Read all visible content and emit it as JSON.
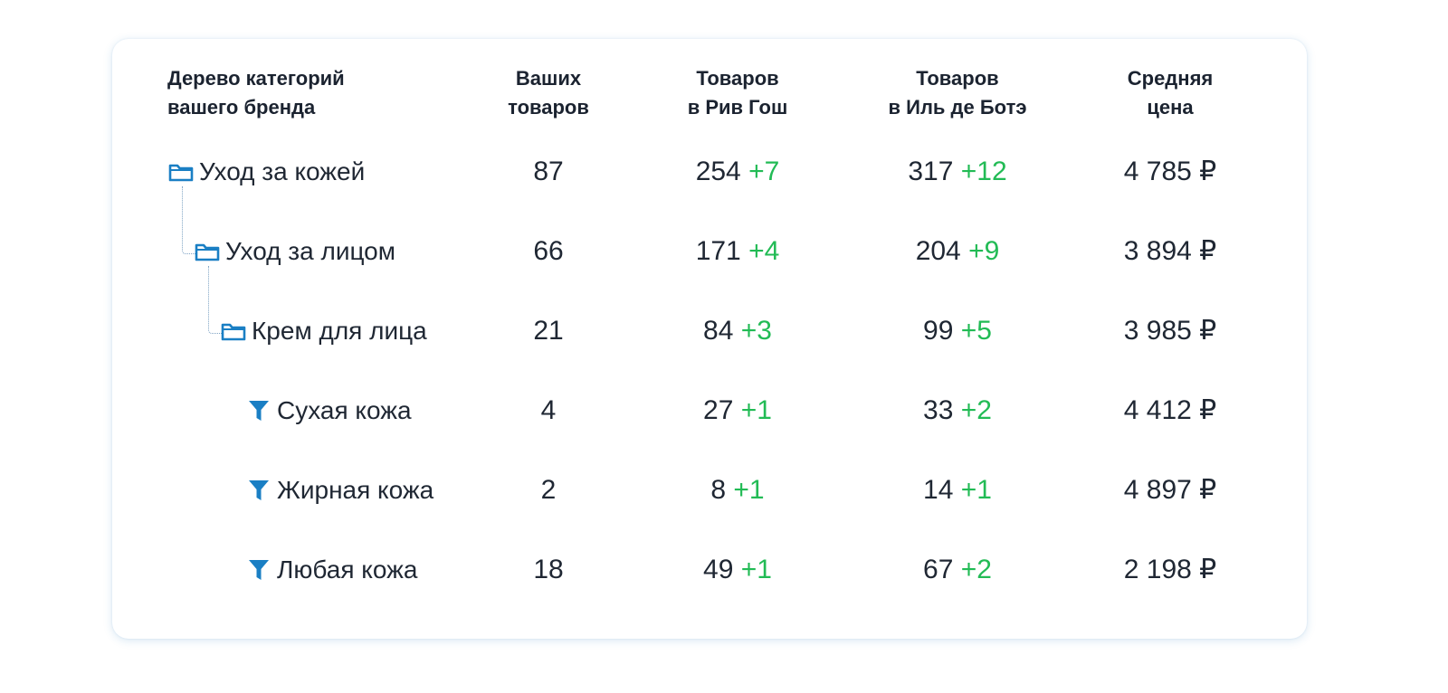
{
  "headers": {
    "category": [
      "Дерево категорий",
      "вашего бренда"
    ],
    "yours": [
      "Ваших",
      "товаров"
    ],
    "rivgauche": [
      "Товаров",
      "в Рив Гош"
    ],
    "iledebeaute": [
      "Товаров",
      "в Иль де Ботэ"
    ],
    "avg_price": [
      "Средняя",
      "цена"
    ]
  },
  "rows": [
    {
      "icon": "folder-icon",
      "label": "Уход за кожей",
      "yours": "87",
      "rivgauche": "254",
      "rivgauche_delta": "+7",
      "iledebeaute": "317",
      "iledebeaute_delta": "+12",
      "avg_price": "4 785 ₽"
    },
    {
      "icon": "folder-icon",
      "label": "Уход за лицом",
      "yours": "66",
      "rivgauche": "171",
      "rivgauche_delta": "+4",
      "iledebeaute": "204",
      "iledebeaute_delta": "+9",
      "avg_price": "3 894 ₽"
    },
    {
      "icon": "folder-icon",
      "label": "Крем для лица",
      "yours": "21",
      "rivgauche": "84",
      "rivgauche_delta": "+3",
      "iledebeaute": "99",
      "iledebeaute_delta": "+5",
      "avg_price": "3 985 ₽"
    },
    {
      "icon": "filter-icon",
      "label": "Сухая кожа",
      "yours": "4",
      "rivgauche": "27",
      "rivgauche_delta": "+1",
      "iledebeaute": "33",
      "iledebeaute_delta": "+2",
      "avg_price": "4 412 ₽"
    },
    {
      "icon": "filter-icon",
      "label": "Жирная кожа",
      "yours": "2",
      "rivgauche": "8",
      "rivgauche_delta": "+1",
      "iledebeaute": "14",
      "iledebeaute_delta": "+1",
      "avg_price": "4 897 ₽"
    },
    {
      "icon": "filter-icon",
      "label": "Любая кожа",
      "yours": "18",
      "rivgauche": "49",
      "rivgauche_delta": "+1",
      "iledebeaute": "67",
      "iledebeaute_delta": "+2",
      "avg_price": "2 198 ₽"
    }
  ],
  "colors": {
    "icon": "#1a7fc4",
    "delta_positive": "#22bb55",
    "text": "#1f2733",
    "tree_line": "#7fa3c4"
  }
}
